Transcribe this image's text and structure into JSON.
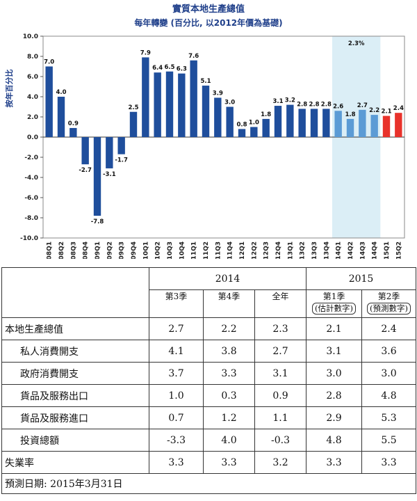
{
  "chart_data": {
    "type": "bar",
    "title": "實質本地生產總值",
    "subtitle": "每年轉變 (百分比, 以2012年價為基礎)",
    "ylabel": "按年百分比",
    "xlabel": "",
    "ylim": [
      -10,
      10
    ],
    "yticks": [
      "10.0",
      "8.0",
      "6.0",
      "4.0",
      "2.0",
      "0.0",
      "-2.0",
      "-4.0",
      "-6.0",
      "-8.0",
      "-10.0"
    ],
    "categories": [
      "08Q1",
      "08Q2",
      "08Q3",
      "08Q4",
      "09Q1",
      "09Q2",
      "09Q3",
      "09Q4",
      "10Q1",
      "10Q2",
      "10Q3",
      "10Q4",
      "11Q1",
      "11Q2",
      "11Q3",
      "11Q4",
      "12Q1",
      "12Q2",
      "12Q3",
      "12Q4",
      "13Q1",
      "13Q2",
      "13Q3",
      "13Q4",
      "14Q1",
      "14Q2",
      "14Q3",
      "14Q4",
      "15Q1",
      "15Q2"
    ],
    "values": [
      7.0,
      4.0,
      0.9,
      -2.7,
      -7.8,
      -3.1,
      -1.7,
      2.5,
      7.9,
      6.4,
      6.5,
      6.3,
      7.6,
      5.1,
      3.9,
      3.0,
      0.8,
      1.0,
      1.8,
      3.1,
      3.2,
      2.8,
      2.8,
      2.8,
      2.6,
      1.8,
      2.7,
      2.2,
      2.1,
      2.4
    ],
    "value_labels": [
      "7.0",
      "4.0",
      "0.9",
      "-2.7",
      "-7.8",
      "-3.1",
      "-1.7",
      "2.5",
      "7.9",
      "6.4",
      "6.5",
      "6.3",
      "7.6",
      "5.1",
      "3.9",
      "3.0",
      "0.8",
      "1.0",
      "1.8",
      "3.1",
      "3.2",
      "2.8",
      "2.8",
      "2.8",
      "2.6",
      "1.8",
      "2.7",
      "2.2",
      "2.1",
      "2.4"
    ],
    "bar_groups": [
      "actual",
      "actual",
      "actual",
      "actual",
      "actual",
      "actual",
      "actual",
      "actual",
      "actual",
      "actual",
      "actual",
      "actual",
      "actual",
      "actual",
      "actual",
      "actual",
      "actual",
      "actual",
      "actual",
      "actual",
      "actual",
      "actual",
      "actual",
      "actual",
      "2014",
      "2014",
      "2014",
      "2014",
      "forecast",
      "forecast"
    ],
    "colors": {
      "actual": "#1f4e9c",
      "2014": "#5b9bd5",
      "forecast": "#e8322b",
      "highlight": "#dbeef6"
    },
    "highlight": {
      "from": "14Q1",
      "to": "14Q4",
      "label": "2.3%"
    },
    "grid": false
  },
  "table": {
    "year_headers": [
      "2014",
      "2015"
    ],
    "col_headers": [
      "第3季",
      "第4季",
      "全年",
      "第1季",
      "第2季"
    ],
    "col_notes": [
      "",
      "",
      "",
      "(估計數字)",
      "(預測數字)"
    ],
    "rows": [
      {
        "label": "本地生產總值",
        "indent": false,
        "values": [
          "2.7",
          "2.2",
          "2.3",
          "2.1",
          "2.4"
        ]
      },
      {
        "label": "私人消費開支",
        "indent": true,
        "values": [
          "4.1",
          "3.8",
          "2.7",
          "3.1",
          "3.6"
        ]
      },
      {
        "label": "政府消費開支",
        "indent": true,
        "values": [
          "3.7",
          "3.3",
          "3.1",
          "3.0",
          "3.0"
        ]
      },
      {
        "label": "貨品及服務出口",
        "indent": true,
        "values": [
          "1.0",
          "0.3",
          "0.9",
          "2.8",
          "4.8"
        ]
      },
      {
        "label": "貨品及服務進口",
        "indent": true,
        "values": [
          "0.7",
          "1.2",
          "1.1",
          "2.9",
          "5.3"
        ]
      },
      {
        "label": "投資總額",
        "indent": true,
        "values": [
          "-3.3",
          "4.0",
          "-0.3",
          "4.8",
          "5.5"
        ]
      },
      {
        "label": "失業率",
        "indent": false,
        "values": [
          "3.3",
          "3.3",
          "3.2",
          "3.3",
          "3.3"
        ]
      }
    ],
    "footnote": "預測日期:  2015年3月31日"
  }
}
